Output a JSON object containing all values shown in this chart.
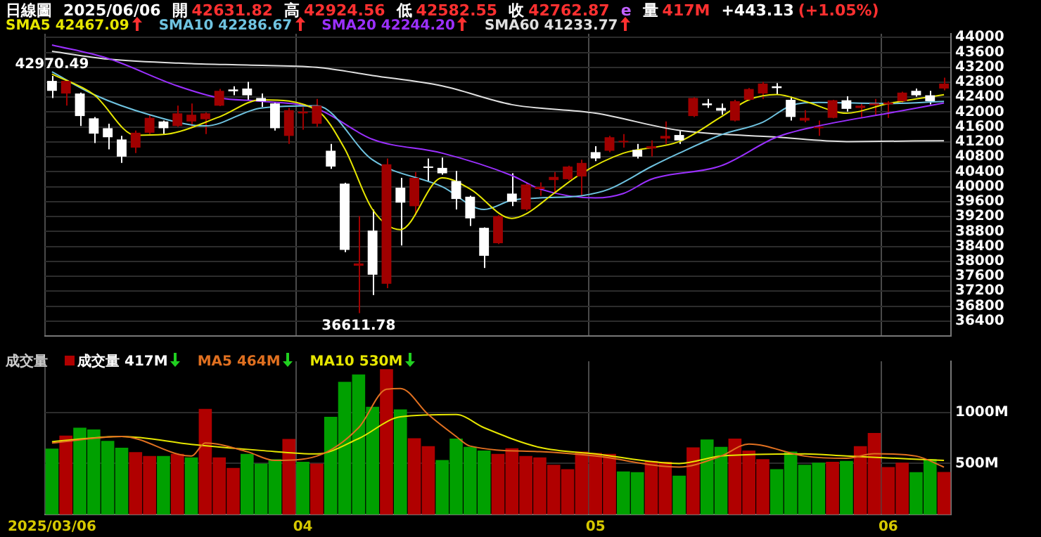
{
  "chart_data": [
    {
      "type": "candlestick",
      "title": "日線圖",
      "subtitle": "2025/06/06",
      "annotations": [
        "開 42631.82",
        "高 42924.56",
        "低 42582.55",
        "收 42762.87",
        "e",
        "量 417M",
        "+443.13 (+1.05%)",
        {
          "text": "42970.49",
          "x": "2025/03/06",
          "y": 42970.49
        },
        {
          "text": "36611.78",
          "y": 36611.78
        }
      ],
      "categories": [
        "2025/03/06",
        null,
        null,
        null,
        null,
        null,
        null,
        null,
        null,
        null,
        null,
        null,
        null,
        null,
        null,
        null,
        null,
        null,
        "04",
        null,
        null,
        null,
        null,
        null,
        null,
        null,
        null,
        null,
        null,
        null,
        null,
        null,
        null,
        null,
        null,
        null,
        null,
        null,
        null,
        "05",
        null,
        null,
        null,
        null,
        null,
        null,
        null,
        null,
        null,
        null,
        null,
        null,
        null,
        null,
        null,
        null,
        null,
        null,
        null,
        null,
        "06",
        null,
        null,
        null,
        null
      ],
      "ohlc": [
        [
          42836,
          42970.49,
          42377,
          42570
        ],
        [
          42498,
          42860,
          42172,
          42836
        ],
        [
          42498,
          42522,
          41628,
          41894
        ],
        [
          41833,
          41870,
          41169,
          41423
        ],
        [
          41568,
          41688,
          41000,
          41326
        ],
        [
          41266,
          41362,
          40637,
          40807
        ],
        [
          41048,
          41507,
          40903,
          41447
        ],
        [
          41447,
          41930,
          41410,
          41846
        ],
        [
          41749,
          41773,
          41410,
          41568
        ],
        [
          41628,
          42172,
          41604,
          41966
        ],
        [
          41749,
          42232,
          41604,
          41930
        ],
        [
          41809,
          41990,
          41410,
          41966
        ],
        [
          42172,
          42619,
          42160,
          42570
        ],
        [
          42606,
          42691,
          42450,
          42558
        ],
        [
          42631,
          42812,
          42329,
          42450
        ],
        [
          42377,
          42498,
          42135,
          42292
        ],
        [
          42232,
          42256,
          41507,
          41568
        ],
        [
          41362,
          42111,
          41145,
          42051
        ],
        [
          41966,
          42135,
          41531,
          42014
        ],
        [
          41688,
          42353,
          41604,
          42172
        ],
        [
          40964,
          41145,
          40480,
          40541
        ],
        [
          40082,
          40106,
          38246,
          38306
        ],
        [
          37883,
          39212,
          36611.78,
          37944
        ],
        [
          38826,
          39393,
          37098,
          37642
        ],
        [
          37400,
          40758,
          37279,
          40601
        ],
        [
          39973,
          40239,
          38427,
          39574
        ],
        [
          39478,
          40396,
          39236,
          40239
        ],
        [
          40541,
          40758,
          40154,
          40505
        ],
        [
          40505,
          40782,
          40323,
          40360
        ],
        [
          40154,
          40420,
          39393,
          39671
        ],
        [
          39732,
          39756,
          38946,
          39152
        ],
        [
          38898,
          38910,
          37823,
          38149
        ],
        [
          38487,
          39236,
          38463,
          39212
        ],
        [
          39816,
          40360,
          39478,
          39599
        ],
        [
          39393,
          40118,
          39357,
          40058
        ],
        [
          39937,
          40118,
          39756,
          39997
        ],
        [
          40178,
          40396,
          39816,
          40263
        ],
        [
          40203,
          40565,
          40178,
          40541
        ],
        [
          40275,
          40722,
          39756,
          40638
        ],
        [
          40927,
          41084,
          40686,
          40758
        ],
        [
          40964,
          41362,
          40927,
          41326
        ],
        [
          41193,
          41410,
          41048,
          41229
        ],
        [
          40988,
          41145,
          40758,
          40807
        ],
        [
          41024,
          41241,
          40807,
          41084
        ],
        [
          41290,
          41749,
          41145,
          41362
        ],
        [
          41386,
          41507,
          41145,
          41241
        ],
        [
          41894,
          42401,
          41870,
          42377
        ],
        [
          42232,
          42353,
          42111,
          42184
        ],
        [
          42111,
          42232,
          41930,
          42039
        ],
        [
          41773,
          42329,
          41749,
          42292
        ],
        [
          42329,
          42643,
          42317,
          42619
        ],
        [
          42498,
          42812,
          42353,
          42764
        ],
        [
          42691,
          42776,
          42474,
          42643
        ],
        [
          42329,
          42413,
          41773,
          41870
        ],
        [
          41773,
          42051,
          41725,
          41846
        ],
        [
          41568,
          41773,
          41362,
          41604
        ],
        [
          41846,
          42329,
          41833,
          42317
        ],
        [
          42317,
          42425,
          42014,
          42087
        ],
        [
          42111,
          42232,
          41846,
          42172
        ],
        [
          42184,
          42353,
          41930,
          42232
        ],
        [
          42208,
          42292,
          41846,
          42256
        ],
        [
          42292,
          42546,
          42256,
          42522
        ],
        [
          42570,
          42631,
          42413,
          42450
        ],
        [
          42450,
          42570,
          42208,
          42292
        ],
        [
          42631.82,
          42924.56,
          42582.55,
          42762.87
        ]
      ],
      "colors": [
        "#ffffff",
        "#a00000",
        "#ffffff",
        "#ffffff",
        "#ffffff",
        "#ffffff",
        "#a00000",
        "#a00000",
        "#ffffff",
        "#a00000",
        "#a00000",
        "#a00000",
        "#a00000",
        "#ffffff",
        "#ffffff",
        "#ffffff",
        "#ffffff",
        "#a00000",
        "#a00000",
        "#a00000",
        "#ffffff",
        "#ffffff",
        "#a00000",
        "#ffffff",
        "#a00000",
        "#ffffff",
        "#a00000",
        "#ffffff",
        "#ffffff",
        "#ffffff",
        "#ffffff",
        "#ffffff",
        "#a00000",
        "#ffffff",
        "#a00000",
        "#a00000",
        "#a00000",
        "#a00000",
        "#a00000",
        "#ffffff",
        "#a00000",
        "#a00000",
        "#ffffff",
        "#a00000",
        "#a00000",
        "#ffffff",
        "#a00000",
        "#ffffff",
        "#ffffff",
        "#a00000",
        "#a00000",
        "#a00000",
        "#ffffff",
        "#ffffff",
        "#a00000",
        "#a00000",
        "#a00000",
        "#ffffff",
        "#a00000",
        "#a00000",
        "#a00000",
        "#a00000",
        "#ffffff",
        "#ffffff",
        "#a00000"
      ],
      "series": [
        {
          "name": "SMA5 42467.09",
          "type": "line",
          "color": "#e6e600",
          "values": [
            43020,
            null,
            null,
            42470,
            null,
            null,
            41380,
            null,
            41400,
            null,
            null,
            null,
            41870,
            null,
            null,
            42330,
            null,
            null,
            null,
            42050,
            null,
            41020,
            null,
            39390,
            null,
            38850,
            null,
            null,
            40240,
            null,
            39940,
            null,
            null,
            39150,
            39270,
            null,
            39820,
            null,
            40360,
            null,
            null,
            40900,
            null,
            null,
            null,
            41210,
            null,
            null,
            41870,
            null,
            42330,
            null,
            42470,
            null,
            42290,
            null,
            null,
            41970,
            null,
            null,
            42230,
            null,
            null,
            null,
            42467.09
          ]
        },
        {
          "name": "SMA10 42286.67",
          "type": "line",
          "color": "#6fc3e0",
          "values": [
            43080,
            null,
            null,
            42470,
            null,
            null,
            null,
            41930,
            null,
            null,
            null,
            41630,
            null,
            null,
            null,
            42110,
            null,
            null,
            null,
            42170,
            null,
            null,
            null,
            40720,
            null,
            null,
            null,
            null,
            40000,
            null,
            null,
            39390,
            null,
            39640,
            null,
            39700,
            null,
            null,
            39760,
            null,
            39940,
            null,
            null,
            40540,
            null,
            40900,
            null,
            null,
            41390,
            null,
            null,
            41730,
            null,
            42170,
            null,
            42260,
            null,
            null,
            null,
            null,
            42230,
            null,
            null,
            null,
            42286.67
          ]
        },
        {
          "name": "SMA20 42244.20",
          "type": "line",
          "color": "#9b30ff",
          "values": [
            43800,
            null,
            null,
            null,
            43440,
            null,
            null,
            null,
            null,
            42700,
            null,
            null,
            42380,
            null,
            null,
            42290,
            null,
            null,
            null,
            42090,
            null,
            null,
            null,
            41270,
            null,
            null,
            null,
            null,
            40900,
            null,
            null,
            null,
            null,
            40300,
            null,
            39940,
            null,
            null,
            null,
            39700,
            null,
            39820,
            null,
            40200,
            null,
            null,
            null,
            null,
            40560,
            null,
            null,
            null,
            41330,
            null,
            null,
            41630,
            null,
            null,
            null,
            null,
            41970,
            null,
            null,
            null,
            42244.2
          ]
        },
        {
          "name": "SMA60 41233.77",
          "type": "line",
          "color": "#e0e0e0",
          "values": [
            43630,
            null,
            null,
            null,
            43420,
            null,
            null,
            null,
            null,
            null,
            43300,
            null,
            null,
            null,
            43260,
            null,
            null,
            null,
            null,
            43200,
            null,
            null,
            null,
            42980,
            null,
            null,
            null,
            null,
            42700,
            null,
            null,
            null,
            null,
            42200,
            null,
            null,
            null,
            null,
            null,
            41970,
            null,
            null,
            null,
            null,
            null,
            41510,
            null,
            null,
            null,
            null,
            null,
            null,
            41330,
            null,
            null,
            null,
            null,
            41210,
            null,
            null,
            null,
            null,
            null,
            null,
            41233.77
          ]
        }
      ],
      "ylim": [
        36000,
        44100
      ],
      "yticks": [
        36400,
        36800,
        37200,
        37600,
        38000,
        38400,
        38800,
        39200,
        39600,
        40000,
        40400,
        40800,
        41200,
        41600,
        42000,
        42400,
        42800,
        43200,
        43600,
        44000
      ],
      "grid": true,
      "legend": "top left",
      "tick_labels": "y"
    },
    {
      "type": "bar",
      "title": "成交量",
      "categories": [
        "2025/03/06",
        null,
        null,
        null,
        null,
        null,
        null,
        null,
        null,
        null,
        null,
        null,
        null,
        null,
        null,
        null,
        null,
        null,
        "04",
        null,
        null,
        null,
        null,
        null,
        null,
        null,
        null,
        null,
        null,
        null,
        null,
        null,
        null,
        null,
        null,
        null,
        null,
        null,
        null,
        "05",
        null,
        null,
        null,
        null,
        null,
        null,
        null,
        null,
        null,
        null,
        null,
        null,
        null,
        null,
        null,
        null,
        null,
        null,
        null,
        null,
        "06",
        null,
        null,
        null,
        null
      ],
      "series": [
        {
          "name": "成交量 417M",
          "type": "bar",
          "values": [
            645,
            773,
            850,
            833,
            721,
            653,
            610,
            572,
            572,
            593,
            559,
            1033,
            559,
            456,
            593,
            499,
            542,
            739,
            516,
            499,
            956,
            1298,
            1371,
            1055,
            1422,
            1029,
            747,
            670,
            533,
            743,
            662,
            627,
            593,
            649,
            572,
            559,
            486,
            444,
            615,
            602,
            593,
            422,
            414,
            525,
            516,
            380,
            657,
            734,
            662,
            743,
            627,
            542,
            444,
            615,
            486,
            508,
            516,
            525,
            670,
            798,
            465,
            508,
            414,
            542,
            417
          ],
          "colors": [
            "#00a000",
            "#b00000",
            "#00a000",
            "#00a000",
            "#00a000",
            "#00a000",
            "#b00000",
            "#b00000",
            "#00a000",
            "#b00000",
            "#00a000",
            "#b00000",
            "#b00000",
            "#b00000",
            "#00a000",
            "#00a000",
            "#00a000",
            "#b00000",
            "#00a000",
            "#b00000",
            "#00a000",
            "#00a000",
            "#00a000",
            "#00a000",
            "#b00000",
            "#00a000",
            "#b00000",
            "#b00000",
            "#00a000",
            "#00a000",
            "#00a000",
            "#00a000",
            "#b00000",
            "#b00000",
            "#b00000",
            "#b00000",
            "#b00000",
            "#b00000",
            "#b00000",
            "#b00000",
            "#b00000",
            "#00a000",
            "#00a000",
            "#b00000",
            "#b00000",
            "#00a000",
            "#b00000",
            "#00a000",
            "#00a000",
            "#b00000",
            "#b00000",
            "#b00000",
            "#00a000",
            "#00a000",
            "#00a000",
            "#00a000",
            "#b00000",
            "#00a000",
            "#b00000",
            "#b00000",
            "#b00000",
            "#b00000",
            "#00a000",
            "#00a000",
            "#b00000"
          ]
        },
        {
          "name": "MA5 464M",
          "type": "line",
          "color": "#e07020",
          "values": [
            700,
            null,
            null,
            null,
            null,
            764,
            null,
            null,
            null,
            null,
            572,
            700,
            null,
            null,
            615,
            null,
            529,
            null,
            null,
            572,
            null,
            null,
            850,
            null,
            1226,
            1234,
            null,
            978,
            null,
            764,
            670,
            null,
            null,
            null,
            null,
            615,
            null,
            null,
            null,
            572,
            null,
            null,
            null,
            null,
            null,
            465,
            null,
            null,
            572,
            null,
            690,
            null,
            null,
            null,
            572,
            null,
            null,
            550,
            null,
            595,
            null,
            null,
            572,
            null,
            464
          ]
        },
        {
          "name": "MA10 530M",
          "type": "line",
          "color": "#e6e600",
          "values": [
            713,
            null,
            null,
            null,
            null,
            764,
            null,
            null,
            null,
            null,
            687,
            null,
            null,
            null,
            null,
            627,
            null,
            null,
            null,
            593,
            null,
            null,
            743,
            null,
            null,
            956,
            null,
            null,
            null,
            978,
            null,
            850,
            null,
            null,
            null,
            657,
            null,
            null,
            null,
            593,
            null,
            null,
            null,
            null,
            null,
            499,
            null,
            null,
            572,
            null,
            null,
            null,
            null,
            null,
            593,
            null,
            null,
            572,
            null,
            null,
            null,
            null,
            null,
            null,
            530
          ]
        }
      ],
      "ylim": [
        0,
        1500
      ],
      "yticks": [
        {
          "value": 500,
          "label": "500M"
        },
        {
          "value": 1000,
          "label": "1000M"
        }
      ],
      "grid": true,
      "legend": "top left"
    }
  ]
}
